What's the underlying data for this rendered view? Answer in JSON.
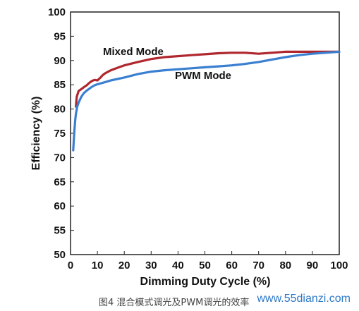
{
  "chart_data": {
    "type": "line",
    "xlabel": "Dimming Duty Cycle (%)",
    "ylabel": "Efficiency (%)",
    "xlim": [
      0,
      100
    ],
    "ylim": [
      50,
      100
    ],
    "xticks": [
      "0",
      "10",
      "20",
      "30",
      "40",
      "50",
      "60",
      "70",
      "80",
      "90",
      "100"
    ],
    "yticks": [
      "50",
      "55",
      "60",
      "65",
      "70",
      "75",
      "80",
      "85",
      "90",
      "95",
      "100"
    ],
    "grid": false,
    "series": [
      {
        "name": "Mixed Mode",
        "color": "#b0272e",
        "x": [
          2,
          2.3,
          3,
          4,
          5,
          6,
          7,
          8,
          9,
          10,
          11,
          12,
          13,
          15,
          18,
          20,
          25,
          30,
          35,
          40,
          45,
          50,
          55,
          60,
          65,
          70,
          75,
          80,
          85,
          90,
          95,
          100
        ],
        "y": [
          80.5,
          82.5,
          83.7,
          84.1,
          84.5,
          84.9,
          85.4,
          85.8,
          86.0,
          85.9,
          86.4,
          87.0,
          87.4,
          88.0,
          88.6,
          89.0,
          89.7,
          90.3,
          90.7,
          90.9,
          91.1,
          91.3,
          91.5,
          91.6,
          91.6,
          91.4,
          91.6,
          91.8,
          91.8,
          91.8,
          91.8,
          91.8
        ]
      },
      {
        "name": "PWM Mode",
        "color": "#3a7fd0",
        "x": [
          1,
          1.3,
          1.7,
          2,
          2.5,
          3,
          4,
          5,
          6,
          7,
          8,
          9,
          10,
          12,
          15,
          20,
          25,
          30,
          35,
          40,
          45,
          50,
          55,
          60,
          65,
          70,
          75,
          80,
          85,
          90,
          95,
          100
        ],
        "y": [
          71.5,
          74.5,
          77.5,
          79.0,
          80.5,
          81.3,
          82.5,
          83.3,
          83.8,
          84.2,
          84.6,
          84.9,
          85.1,
          85.4,
          85.9,
          86.5,
          87.2,
          87.7,
          88.0,
          88.2,
          88.4,
          88.6,
          88.8,
          89.0,
          89.3,
          89.7,
          90.2,
          90.7,
          91.1,
          91.4,
          91.6,
          91.8
        ]
      }
    ]
  },
  "caption": "图4 混合模式调光及PWM调光的效率",
  "watermark": "www.55dianzi.com"
}
